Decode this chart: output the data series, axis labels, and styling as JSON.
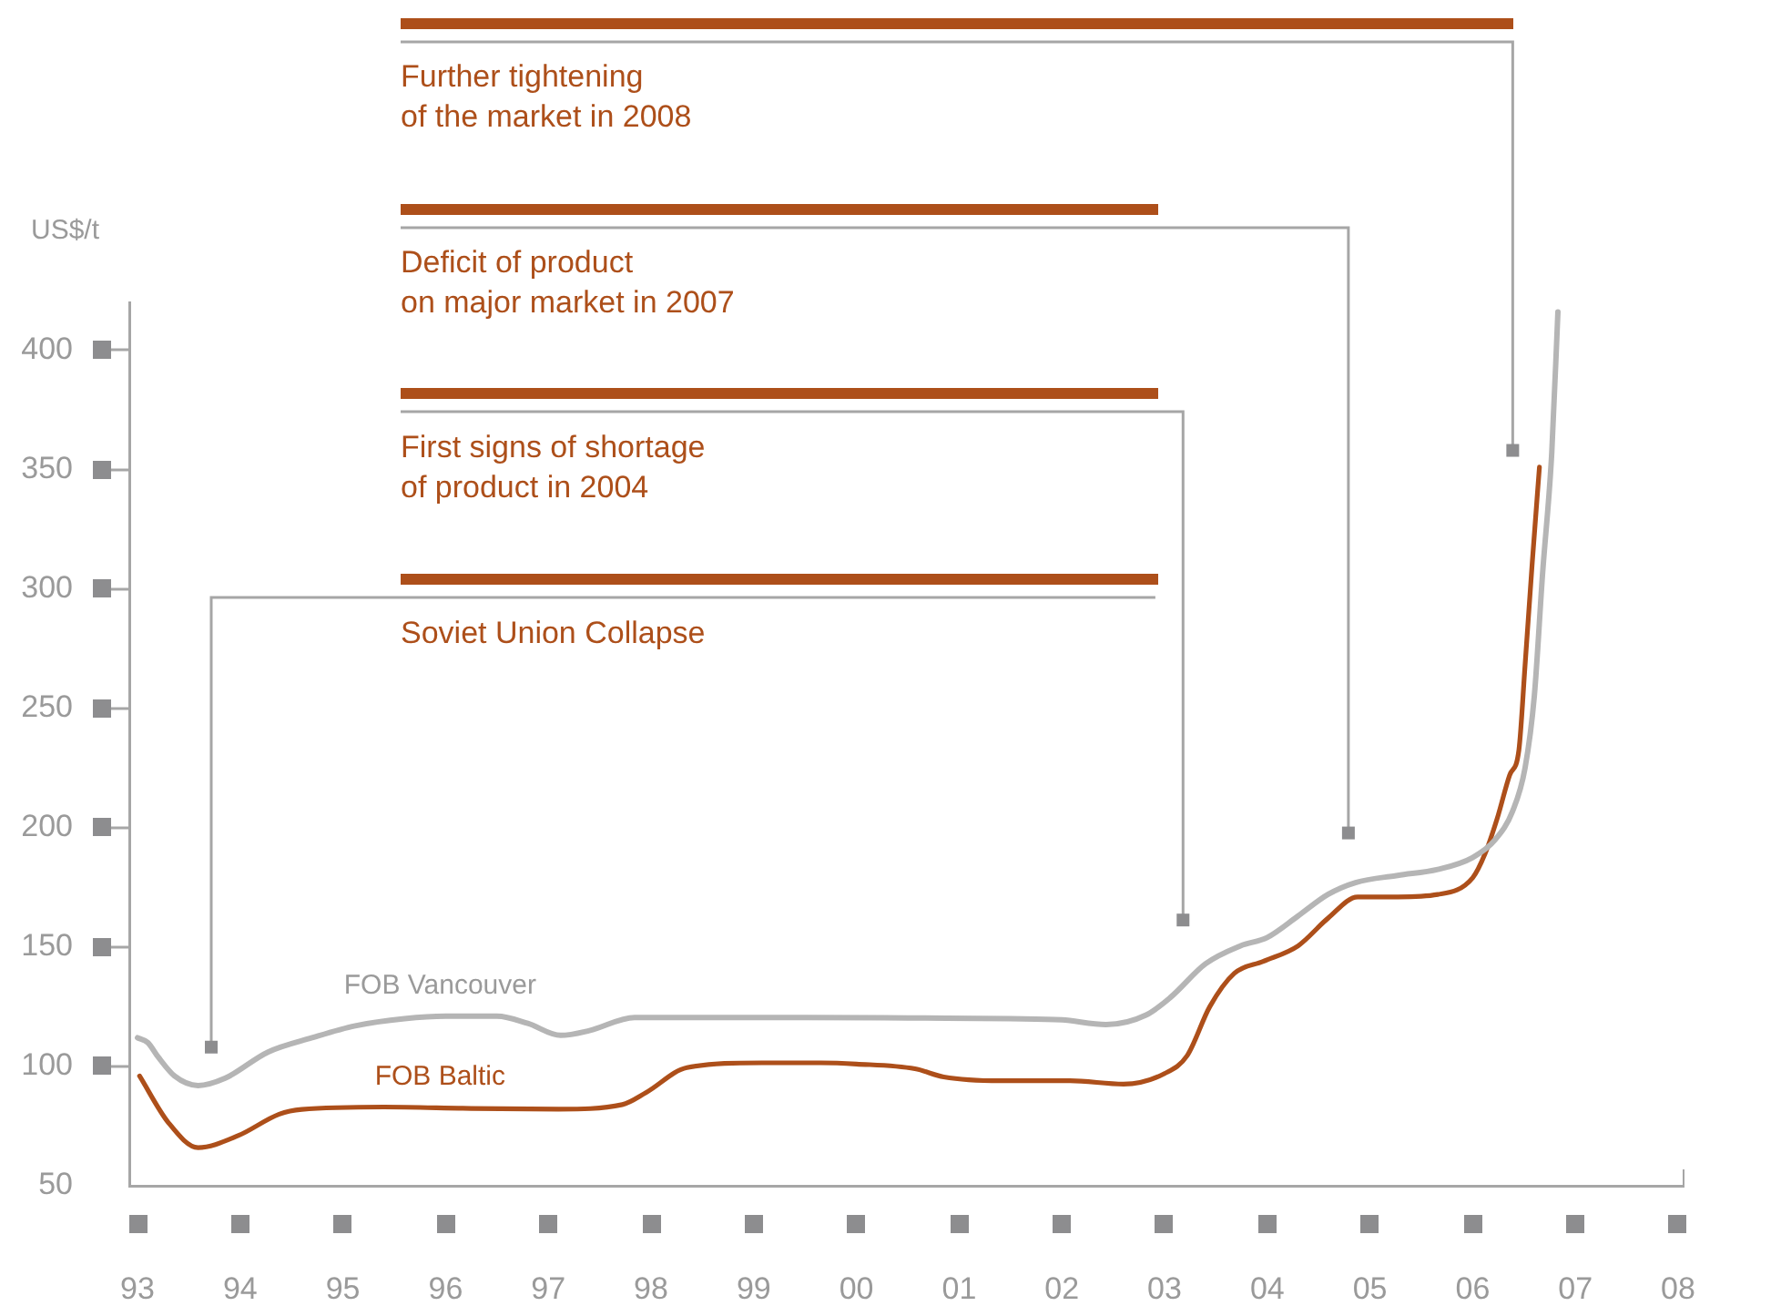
{
  "chart_data": {
    "type": "line",
    "ylabel": "US$/t",
    "xlim": [
      1992.92,
      2008.05
    ],
    "xticks": [
      {
        "value": 1993,
        "label": "93"
      },
      {
        "value": 1994,
        "label": "94"
      },
      {
        "value": 1995,
        "label": "95"
      },
      {
        "value": 1996,
        "label": "96"
      },
      {
        "value": 1997,
        "label": "97"
      },
      {
        "value": 1998,
        "label": "98"
      },
      {
        "value": 1999,
        "label": "99"
      },
      {
        "value": 2000,
        "label": "00"
      },
      {
        "value": 2001,
        "label": "01"
      },
      {
        "value": 2002,
        "label": "02"
      },
      {
        "value": 2003,
        "label": "03"
      },
      {
        "value": 2004,
        "label": "04"
      },
      {
        "value": 2005,
        "label": "05"
      },
      {
        "value": 2006,
        "label": "06"
      },
      {
        "value": 2007,
        "label": "07"
      },
      {
        "value": 2008,
        "label": "08"
      }
    ],
    "ylim": [
      50,
      420
    ],
    "yticks": [
      50,
      100,
      150,
      200,
      250,
      300,
      350,
      400
    ],
    "annotations": [
      {
        "text": "Further tightening\nof the market in 2008",
        "x": 2006.39,
        "y": 358
      },
      {
        "text": "Deficit of product\non major market in 2007",
        "x": 2004.79,
        "y": 198
      },
      {
        "text": "First signs of shortage\nof product in 2004",
        "x": 2003.18,
        "y": 161
      },
      {
        "text": "Soviet Union Collapse",
        "x": 1993.71,
        "y": 108
      }
    ],
    "series": [
      {
        "name": "FOB Vancouver",
        "color": "#b5b5b5",
        "x": [
          1993.0,
          1993.1,
          1993.2,
          1993.36,
          1993.59,
          1993.85,
          1994.27,
          1994.7,
          1995.12,
          1995.6,
          1996.0,
          1996.5,
          1996.8,
          1997.12,
          1997.4,
          1997.84,
          1998.5,
          1999.5,
          2000.5,
          2001.5,
          2002.0,
          2002.43,
          2002.82,
          2003.06,
          2003.4,
          2003.74,
          2004.0,
          2004.3,
          2004.59,
          2004.86,
          2005.27,
          2005.66,
          2006.0,
          2006.22,
          2006.39,
          2006.51,
          2006.6,
          2006.68,
          2006.77,
          2006.83
        ],
        "values": [
          112,
          110,
          104,
          96,
          92,
          95,
          106,
          112,
          117,
          120,
          121,
          121,
          118,
          113,
          115,
          120.5,
          120.5,
          120.5,
          120.3,
          120,
          119.5,
          117.5,
          121.5,
          129,
          143,
          150.5,
          154,
          163,
          172,
          177,
          180,
          182.5,
          187.5,
          195,
          207,
          225,
          255,
          306,
          357,
          416
        ]
      },
      {
        "name": "FOB Baltic",
        "color": "#ad4f1a",
        "x": [
          1993.02,
          1993.3,
          1993.59,
          1993.98,
          1994.38,
          1994.6,
          1995.4,
          1996.25,
          1997.1,
          1997.72,
          1997.95,
          1998.35,
          1999.08,
          1999.65,
          2000.0,
          2000.57,
          2000.85,
          2001.4,
          2002.08,
          2002.6,
          2003.0,
          2003.22,
          2003.44,
          2003.68,
          2003.96,
          2004.3,
          2004.59,
          2004.88,
          2005.27,
          2005.66,
          2006.0,
          2006.12,
          2006.24,
          2006.36,
          2006.45,
          2006.51,
          2006.58,
          2006.65
        ],
        "values": [
          96,
          76.5,
          66,
          71,
          80,
          82,
          83,
          82.4,
          82.1,
          84,
          89,
          99.5,
          101.5,
          101.5,
          101,
          99,
          95.6,
          94,
          94,
          92.6,
          97,
          104.5,
          125,
          139,
          144,
          150.5,
          162,
          171,
          171,
          172,
          179,
          189,
          204,
          222,
          232.5,
          268,
          311,
          351
        ]
      }
    ]
  }
}
